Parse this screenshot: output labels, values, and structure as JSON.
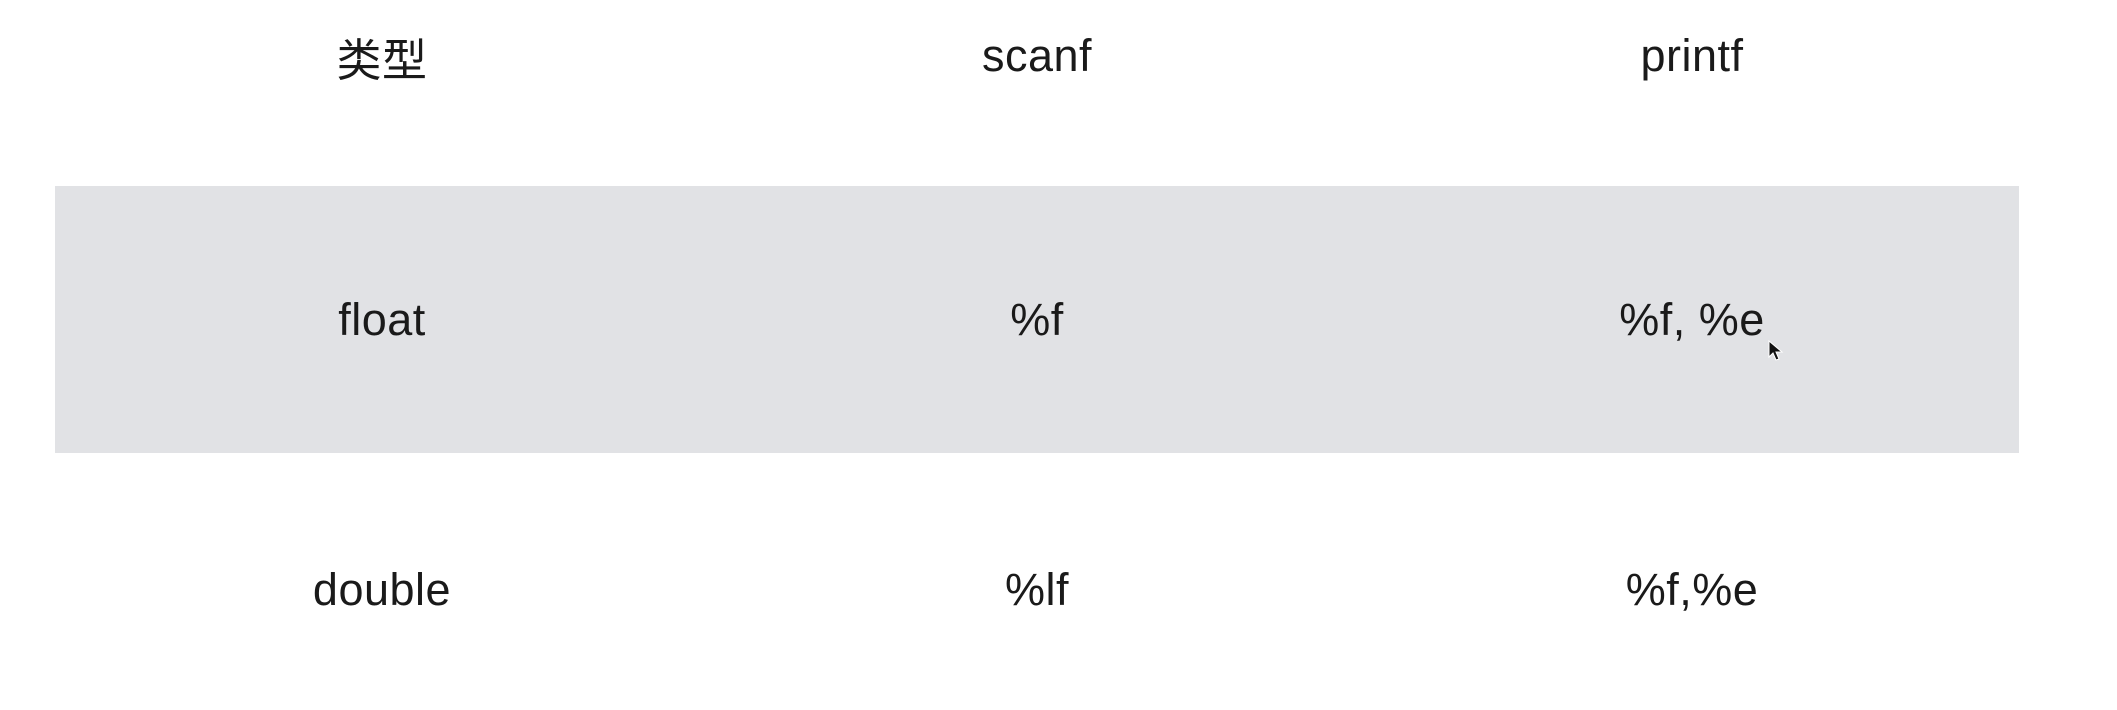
{
  "table": {
    "headers": [
      "类型",
      "scanf",
      "printf"
    ],
    "rows": [
      [
        "float",
        "%f",
        "%f, %e"
      ],
      [
        "double",
        "%lf",
        "%f,%e"
      ]
    ]
  },
  "colors": {
    "highlight_row": "#e1e2e5",
    "text": "#1a1a1a",
    "background": "#ffffff"
  },
  "icons": {
    "cursor": "mouse-pointer-icon"
  }
}
